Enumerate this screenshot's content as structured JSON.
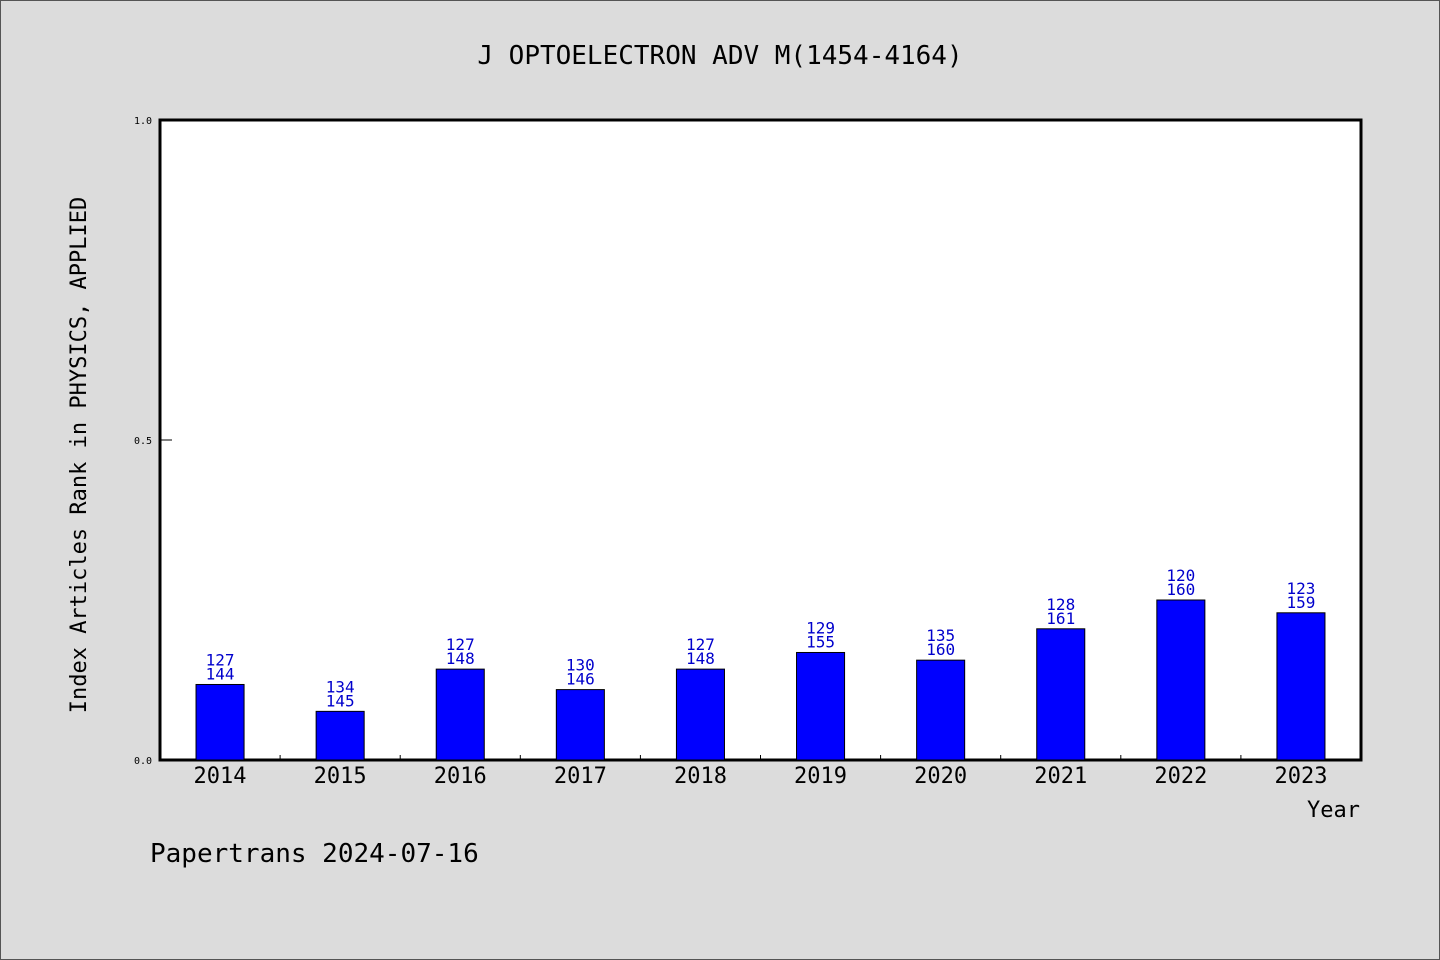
{
  "chart_data": {
    "type": "bar",
    "title": "J OPTOELECTRON ADV M(1454-4164)",
    "xlabel": "Year",
    "ylabel": "Index Articles Rank in PHYSICS, APPLIED",
    "ylim": [
      0.0,
      1.0
    ],
    "yticks": [
      "0.0",
      "0.5",
      "1.0"
    ],
    "categories": [
      "2014",
      "2015",
      "2016",
      "2017",
      "2018",
      "2019",
      "2020",
      "2021",
      "2022",
      "2023"
    ],
    "values": [
      0.118,
      0.076,
      0.142,
      0.11,
      0.142,
      0.168,
      0.156,
      0.205,
      0.25,
      0.23
    ],
    "rank": [
      "127",
      "134",
      "127",
      "130",
      "127",
      "129",
      "135",
      "128",
      "120",
      "123"
    ],
    "total": [
      "144",
      "145",
      "148",
      "146",
      "148",
      "155",
      "160",
      "161",
      "160",
      "159"
    ],
    "bar_color": "#0000ff",
    "label_color": "#0000cc",
    "grid": false
  },
  "footer": {
    "credit": "Papertrans 2024-07-16"
  }
}
